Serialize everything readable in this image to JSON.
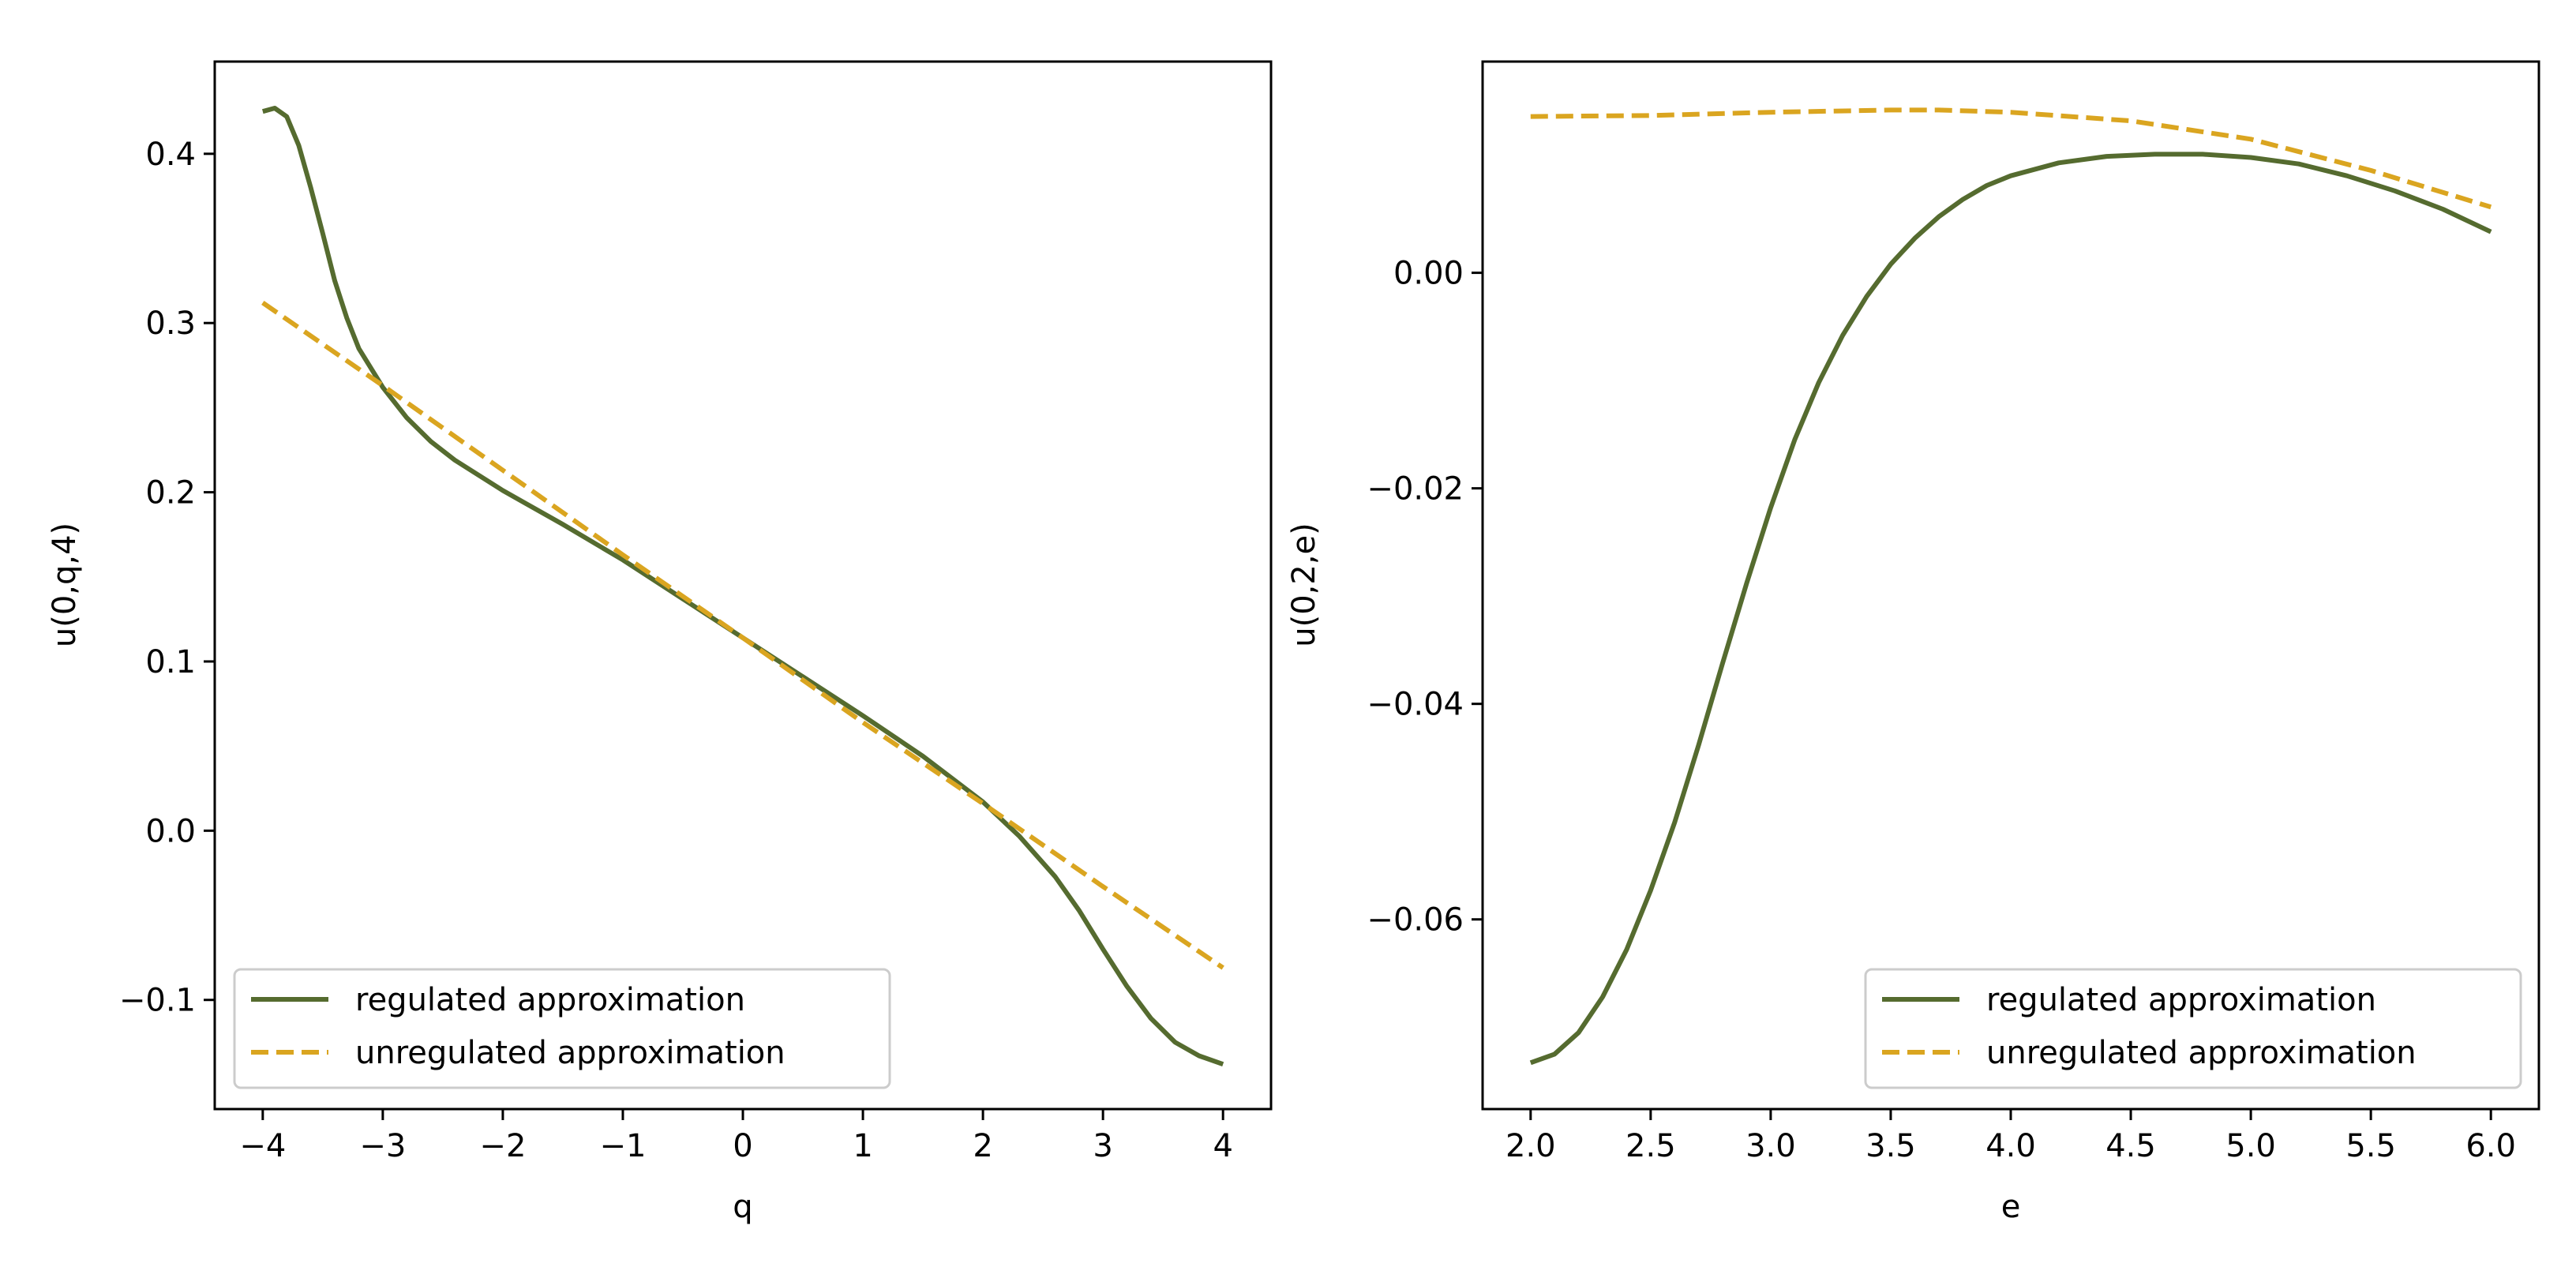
{
  "colors": {
    "regulated": "#556b2f",
    "unregulated": "#daa520",
    "axes": "#000000",
    "legend_border": "#cccccc"
  },
  "chart_data": [
    {
      "type": "line",
      "title": "",
      "xlabel": "q",
      "ylabel": "u(0,q,4)",
      "xlim": [
        -4.4,
        4.4
      ],
      "ylim": [
        -0.1645,
        0.4545
      ],
      "xticks": [
        -4,
        -3,
        -2,
        -1,
        0,
        1,
        2,
        3,
        4
      ],
      "xtick_labels": [
        "−4",
        "−3",
        "−2",
        "−1",
        "0",
        "1",
        "2",
        "3",
        "4"
      ],
      "yticks": [
        -0.1,
        0.0,
        0.1,
        0.2,
        0.3,
        0.4
      ],
      "ytick_labels": [
        "−0.1",
        "0.0",
        "0.1",
        "0.2",
        "0.3",
        "0.4"
      ],
      "grid": false,
      "legend_position": "lower-left",
      "series": [
        {
          "name": "regulated approximation",
          "style": "solid",
          "x": [
            -4.0,
            -3.9,
            -3.8,
            -3.7,
            -3.6,
            -3.5,
            -3.4,
            -3.3,
            -3.2,
            -3.0,
            -2.8,
            -2.6,
            -2.4,
            -2.0,
            -1.5,
            -1.0,
            -0.5,
            0.0,
            0.5,
            1.0,
            1.5,
            2.0,
            2.3,
            2.6,
            2.8,
            3.0,
            3.2,
            3.4,
            3.6,
            3.8,
            4.0
          ],
          "y": [
            0.425,
            0.427,
            0.422,
            0.405,
            0.38,
            0.353,
            0.325,
            0.303,
            0.285,
            0.262,
            0.244,
            0.23,
            0.219,
            0.201,
            0.181,
            0.16,
            0.137,
            0.114,
            0.091,
            0.068,
            0.044,
            0.017,
            -0.003,
            -0.027,
            -0.047,
            -0.07,
            -0.092,
            -0.111,
            -0.125,
            -0.133,
            -0.138
          ]
        },
        {
          "name": "unregulated approximation",
          "style": "dashed",
          "x": [
            -4.0,
            -3.0,
            -2.0,
            -1.0,
            0.0,
            1.0,
            2.0,
            3.0,
            4.0
          ],
          "y": [
            0.312,
            0.263,
            0.213,
            0.163,
            0.114,
            0.064,
            0.016,
            -0.033,
            -0.081
          ]
        }
      ]
    },
    {
      "type": "line",
      "title": "",
      "xlabel": "e",
      "ylabel": "u(0,2,e)",
      "xlim": [
        1.8,
        6.2
      ],
      "ylim": [
        -0.0776,
        0.0196
      ],
      "xticks": [
        2.0,
        2.5,
        3.0,
        3.5,
        4.0,
        4.5,
        5.0,
        5.5,
        6.0
      ],
      "xtick_labels": [
        "2.0",
        "2.5",
        "3.0",
        "3.5",
        "4.0",
        "4.5",
        "5.0",
        "5.5",
        "6.0"
      ],
      "yticks": [
        -0.06,
        -0.04,
        -0.02,
        0.0
      ],
      "ytick_labels": [
        "−0.06",
        "−0.04",
        "−0.02",
        "0.00"
      ],
      "grid": false,
      "legend_position": "lower-right",
      "series": [
        {
          "name": "regulated approximation",
          "style": "solid",
          "x": [
            2.0,
            2.1,
            2.2,
            2.3,
            2.4,
            2.5,
            2.6,
            2.7,
            2.8,
            2.9,
            3.0,
            3.1,
            3.2,
            3.3,
            3.4,
            3.5,
            3.6,
            3.7,
            3.8,
            3.9,
            4.0,
            4.2,
            4.4,
            4.6,
            4.8,
            5.0,
            5.2,
            5.4,
            5.6,
            5.8,
            6.0
          ],
          "y": [
            -0.0733,
            -0.0725,
            -0.0705,
            -0.0672,
            -0.0628,
            -0.0573,
            -0.051,
            -0.0438,
            -0.0362,
            -0.0288,
            -0.0218,
            -0.0155,
            -0.0102,
            -0.0058,
            -0.0022,
            0.0008,
            0.0032,
            0.0052,
            0.0068,
            0.0081,
            0.009,
            0.0102,
            0.0108,
            0.011,
            0.011,
            0.0107,
            0.0101,
            0.009,
            0.0076,
            0.0059,
            0.0038
          ]
        },
        {
          "name": "unregulated approximation",
          "style": "dashed",
          "x": [
            2.0,
            2.5,
            3.0,
            3.5,
            3.7,
            4.0,
            4.5,
            5.0,
            5.5,
            6.0
          ],
          "y": [
            0.0145,
            0.0146,
            0.0149,
            0.0151,
            0.0151,
            0.0149,
            0.0141,
            0.0124,
            0.0095,
            0.0061
          ]
        }
      ]
    }
  ]
}
